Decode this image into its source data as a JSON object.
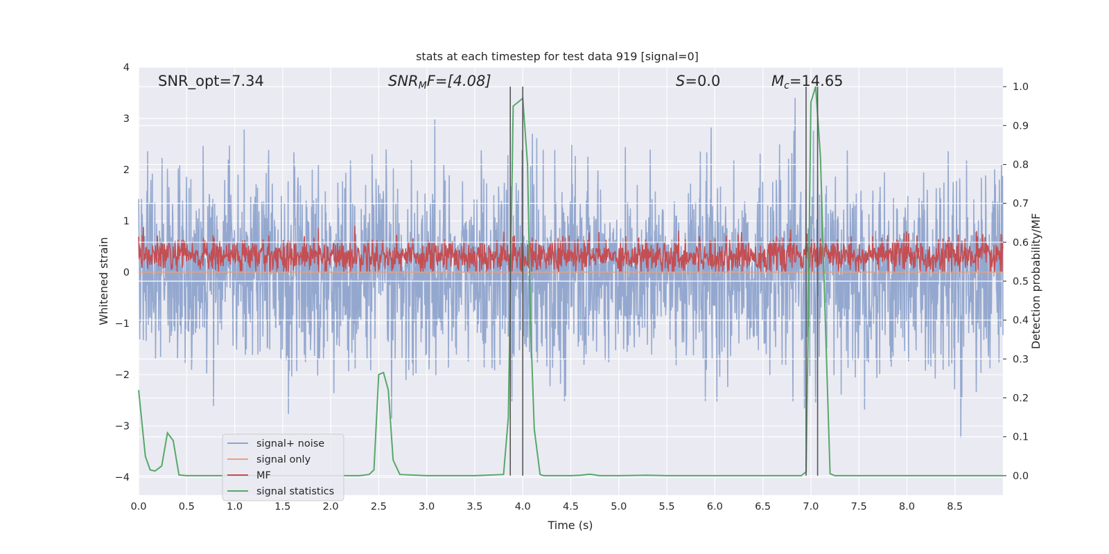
{
  "chart_data": {
    "type": "line",
    "title": "stats at each timestep for test data 919 [signal=0]",
    "xlabel": "Time (s)",
    "ylabel": "Whitened strain",
    "ylabel_right": "Detection probability/MF",
    "xlim": [
      0,
      9
    ],
    "ylim": [
      -4.35,
      4.0
    ],
    "ylim_right": [
      -0.05,
      1.05
    ],
    "x_ticks": [
      "0.0",
      "0.5",
      "1.0",
      "1.5",
      "2.0",
      "2.5",
      "3.0",
      "3.5",
      "4.0",
      "4.5",
      "5.0",
      "5.5",
      "6.0",
      "6.5",
      "7.0",
      "7.5",
      "8.0",
      "8.5"
    ],
    "x_tick_values": [
      0,
      0.5,
      1,
      1.5,
      2,
      2.5,
      3,
      3.5,
      4,
      4.5,
      5,
      5.5,
      6,
      6.5,
      7,
      7.5,
      8,
      8.5
    ],
    "y_ticks": [
      "4",
      "3",
      "2",
      "1",
      "0",
      "−1",
      "−2",
      "−3",
      "−4"
    ],
    "y_tick_values": [
      4,
      3,
      2,
      1,
      0,
      -1,
      -2,
      -3,
      -4
    ],
    "y_ticks_right": [
      "1.0",
      "0.9",
      "0.8",
      "0.7",
      "0.6",
      "0.5",
      "0.4",
      "0.3",
      "0.2",
      "0.1",
      "0.0"
    ],
    "y_tick_values_right": [
      1.0,
      0.9,
      0.8,
      0.7,
      0.6,
      0.5,
      0.4,
      0.3,
      0.2,
      0.1,
      0.0
    ],
    "grid": true,
    "legend_position": "lower-left",
    "annotations": {
      "snr_opt": "SNR_opt=7.34",
      "snr_mf_main": "SNR",
      "snr_mf_sub": "M",
      "snr_mf_rest": "F=[4.08]",
      "s_main": "S",
      "s_rest": "=0.0",
      "mc_main": "M",
      "mc_sub": "c",
      "mc_rest": "=14.65"
    },
    "vertical_lines_x": [
      3.87,
      4.0,
      6.95,
      7.07
    ],
    "series": [
      {
        "name": "signal+ noise",
        "color": "#8fa4cc",
        "axis": "left",
        "description_values": "noise band approximately -4 to 3.4, dense"
      },
      {
        "name": "signal only",
        "color": "#e8a07f",
        "axis": "left",
        "constant": 0.0
      },
      {
        "name": "MF",
        "color": "#c44e52",
        "axis": "left",
        "band": [
          0.0,
          0.9
        ]
      },
      {
        "name": "signal statistics",
        "color": "#55a868",
        "axis": "right",
        "x": [
          0.0,
          0.07,
          0.12,
          0.17,
          0.24,
          0.3,
          0.36,
          0.42,
          0.5,
          0.6,
          1.0,
          1.5,
          2.0,
          2.3,
          2.4,
          2.45,
          2.5,
          2.55,
          2.6,
          2.65,
          2.72,
          3.0,
          3.5,
          3.8,
          3.85,
          3.9,
          3.95,
          4.0,
          4.05,
          4.08,
          4.12,
          4.18,
          4.22,
          4.3,
          4.5,
          4.6,
          4.7,
          4.8,
          5.0,
          5.3,
          5.5,
          6.0,
          6.5,
          6.9,
          6.95,
          6.97,
          7.0,
          7.05,
          7.1,
          7.15,
          7.2,
          7.25,
          7.5,
          8.0,
          8.5,
          9.0
        ],
        "values": [
          0.22,
          0.05,
          0.015,
          0.012,
          0.025,
          0.11,
          0.09,
          0.002,
          0.0,
          0.0,
          0.0,
          0.0,
          0.0,
          0.0,
          0.003,
          0.015,
          0.26,
          0.265,
          0.22,
          0.04,
          0.003,
          0.0,
          0.0,
          0.003,
          0.15,
          0.95,
          0.96,
          0.97,
          0.8,
          0.4,
          0.12,
          0.003,
          0.0,
          0.0,
          0.0,
          0.001,
          0.004,
          0.0,
          0.0,
          0.001,
          0.0,
          0.0,
          0.0,
          0.0,
          0.01,
          0.35,
          0.96,
          1.0,
          0.82,
          0.4,
          0.005,
          0.0,
          0.0,
          0.0,
          0.0,
          0.0
        ]
      }
    ]
  }
}
